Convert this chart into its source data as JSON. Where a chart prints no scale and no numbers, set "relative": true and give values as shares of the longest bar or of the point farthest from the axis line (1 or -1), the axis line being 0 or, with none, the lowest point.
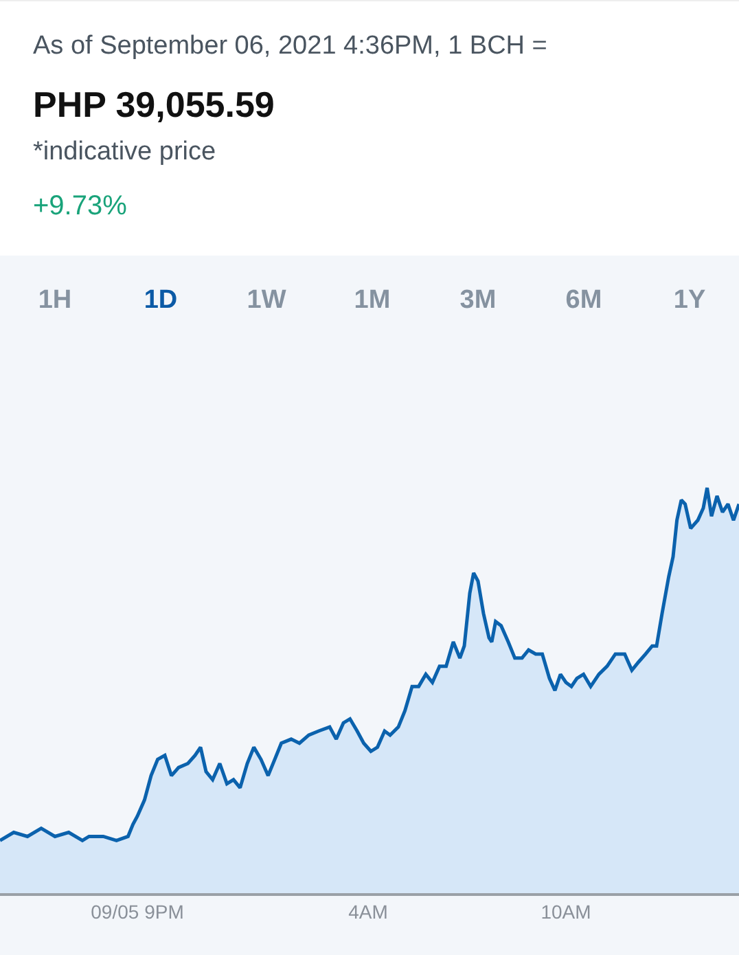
{
  "chart_data": {
    "type": "area",
    "title": "PHP 39,055.59",
    "subtitle": "As of September 06, 2021 4:36PM, 1 BCH =",
    "annotations": [
      "*indicative price",
      "+9.73%",
      "1H",
      "1D",
      "1W",
      "1M",
      "3M",
      "6M",
      "1Y"
    ],
    "relative": true,
    "grid": false,
    "legend": false,
    "marker": "none",
    "line_style": "solid",
    "tick_labels": "x",
    "xlim": [
      "2021-09-05T16:50",
      "2021-09-06T15:15"
    ],
    "xticks": [
      {
        "value": "2021-09-05T21:00",
        "label": "09/05 9PM"
      },
      {
        "value": "2021-09-06T04:00",
        "label": "4AM"
      },
      {
        "value": "2021-09-06T10:00",
        "label": "10AM"
      }
    ],
    "series": [
      {
        "color": "#0b62ad",
        "x": [
          "2021-09-05T16:50",
          "2021-09-05T17:15",
          "2021-09-05T17:40",
          "2021-09-05T18:05",
          "2021-09-05T18:30",
          "2021-09-05T18:55",
          "2021-09-05T19:20",
          "2021-09-05T19:32",
          "2021-09-05T19:58",
          "2021-09-05T20:22",
          "2021-09-05T20:43",
          "2021-09-05T20:52",
          "2021-09-05T21:00",
          "2021-09-05T21:13",
          "2021-09-05T21:25",
          "2021-09-05T21:37",
          "2021-09-05T21:50",
          "2021-09-05T22:02",
          "2021-09-05T22:15",
          "2021-09-05T22:32",
          "2021-09-05T22:45",
          "2021-09-05T22:55",
          "2021-09-05T23:05",
          "2021-09-05T23:17",
          "2021-09-05T23:30",
          "2021-09-05T23:43",
          "2021-09-05T23:55",
          "2021-09-06T00:07",
          "2021-09-06T00:20",
          "2021-09-06T00:32",
          "2021-09-06T00:45",
          "2021-09-06T00:58",
          "2021-09-06T01:10",
          "2021-09-06T01:22",
          "2021-09-06T01:40",
          "2021-09-06T01:55",
          "2021-09-06T02:12",
          "2021-09-06T02:30",
          "2021-09-06T02:50",
          "2021-09-06T03:02",
          "2021-09-06T03:15",
          "2021-09-06T03:27",
          "2021-09-06T03:40",
          "2021-09-06T03:52",
          "2021-09-06T04:05",
          "2021-09-06T04:17",
          "2021-09-06T04:30",
          "2021-09-06T04:40",
          "2021-09-06T04:55",
          "2021-09-06T05:07",
          "2021-09-06T05:20",
          "2021-09-06T05:32",
          "2021-09-06T05:45",
          "2021-09-06T05:57",
          "2021-09-06T06:10",
          "2021-09-06T06:22",
          "2021-09-06T06:35",
          "2021-09-06T06:47",
          "2021-09-06T06:55",
          "2021-09-06T07:05",
          "2021-09-06T07:12",
          "2021-09-06T07:20",
          "2021-09-06T07:30",
          "2021-09-06T07:40",
          "2021-09-06T07:45",
          "2021-09-06T07:52",
          "2021-09-06T08:02",
          "2021-09-06T08:15",
          "2021-09-06T08:27",
          "2021-09-06T08:40",
          "2021-09-06T08:52",
          "2021-09-06T09:05",
          "2021-09-06T09:17",
          "2021-09-06T09:30",
          "2021-09-06T09:40",
          "2021-09-06T09:50",
          "2021-09-06T10:00",
          "2021-09-06T10:10",
          "2021-09-06T10:20",
          "2021-09-06T10:32",
          "2021-09-06T10:45",
          "2021-09-06T11:00",
          "2021-09-06T11:15",
          "2021-09-06T11:30",
          "2021-09-06T11:47",
          "2021-09-06T12:00",
          "2021-09-06T12:12",
          "2021-09-06T12:25",
          "2021-09-06T12:37",
          "2021-09-06T12:45",
          "2021-09-06T12:55",
          "2021-09-06T13:07",
          "2021-09-06T13:15",
          "2021-09-06T13:22",
          "2021-09-06T13:30",
          "2021-09-06T13:37",
          "2021-09-06T13:47",
          "2021-09-06T14:00",
          "2021-09-06T14:10",
          "2021-09-06T14:17",
          "2021-09-06T14:25",
          "2021-09-06T14:35",
          "2021-09-06T14:45",
          "2021-09-06T14:55",
          "2021-09-06T15:05",
          "2021-09-06T15:15"
        ],
        "values": [
          0.13,
          0.15,
          0.14,
          0.16,
          0.14,
          0.15,
          0.13,
          0.14,
          0.14,
          0.13,
          0.14,
          0.17,
          0.19,
          0.23,
          0.29,
          0.33,
          0.34,
          0.29,
          0.31,
          0.32,
          0.34,
          0.36,
          0.3,
          0.28,
          0.32,
          0.27,
          0.28,
          0.26,
          0.32,
          0.36,
          0.33,
          0.29,
          0.33,
          0.37,
          0.38,
          0.37,
          0.39,
          0.4,
          0.41,
          0.38,
          0.42,
          0.43,
          0.4,
          0.37,
          0.35,
          0.36,
          0.4,
          0.39,
          0.41,
          0.45,
          0.51,
          0.51,
          0.54,
          0.52,
          0.56,
          0.56,
          0.62,
          0.58,
          0.61,
          0.74,
          0.79,
          0.77,
          0.69,
          0.63,
          0.62,
          0.67,
          0.66,
          0.62,
          0.58,
          0.58,
          0.6,
          0.59,
          0.59,
          0.53,
          0.5,
          0.54,
          0.52,
          0.51,
          0.53,
          0.54,
          0.51,
          0.54,
          0.56,
          0.59,
          0.59,
          0.55,
          0.57,
          0.59,
          0.61,
          0.61,
          0.69,
          0.78,
          0.83,
          0.92,
          0.97,
          0.96,
          0.9,
          0.92,
          0.95,
          1,
          0.93,
          0.98,
          0.94,
          0.96,
          0.92,
          0.96
        ]
      }
    ]
  }
}
